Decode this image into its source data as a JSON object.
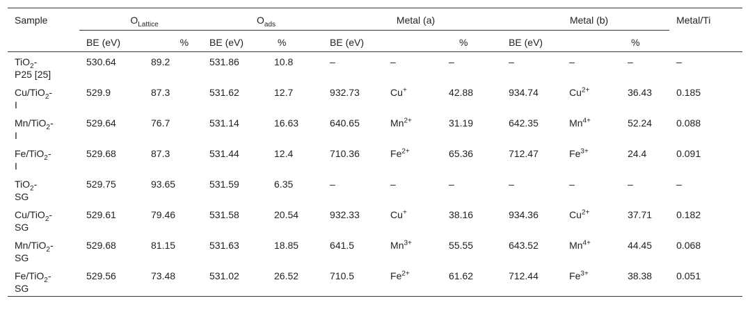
{
  "header": {
    "sample": "Sample",
    "o_lattice": {
      "main": "O",
      "sub": "Lattice"
    },
    "o_ads": {
      "main": "O",
      "sub": "ads"
    },
    "metal_a": "Metal (a)",
    "metal_b": "Metal (b)",
    "be": "BE (eV)",
    "pct": "%",
    "metal_ti": "Metal/Ti"
  },
  "rows": [
    {
      "sample_main": "TiO",
      "sample_sub": "2",
      "sample_tail": "-",
      "sample_line2": "P25 [25]",
      "olat_be": "530.64",
      "olat_pct": "89.2",
      "oads_be": "531.86",
      "oads_pct": "10.8",
      "ma_be": "–",
      "ma_ion": "–",
      "ma_ion_sup": "",
      "ma_pct": "–",
      "mb_be": "–",
      "mb_ion": "–",
      "mb_ion_sup": "",
      "mb_pct": "–",
      "ratio": "–"
    },
    {
      "sample_main": "Cu/TiO",
      "sample_sub": "2",
      "sample_tail": "-",
      "sample_line2": "I",
      "olat_be": "529.9",
      "olat_pct": "87.3",
      "oads_be": "531.62",
      "oads_pct": "12.7",
      "ma_be": "932.73",
      "ma_ion": "Cu",
      "ma_ion_sup": "+",
      "ma_pct": "42.88",
      "mb_be": "934.74",
      "mb_ion": "Cu",
      "mb_ion_sup": "2+",
      "mb_pct": "36.43",
      "ratio": "0.185"
    },
    {
      "sample_main": "Mn/TiO",
      "sample_sub": "2",
      "sample_tail": "-",
      "sample_line2": "I",
      "olat_be": "529.64",
      "olat_pct": "76.7",
      "oads_be": "531.14",
      "oads_pct": "16.63",
      "ma_be": "640.65",
      "ma_ion": "Mn",
      "ma_ion_sup": "2+",
      "ma_pct": "31.19",
      "mb_be": "642.35",
      "mb_ion": "Mn",
      "mb_ion_sup": "4+",
      "mb_pct": "52.24",
      "ratio": "0.088"
    },
    {
      "sample_main": "Fe/TiO",
      "sample_sub": "2",
      "sample_tail": "-",
      "sample_line2": "I",
      "olat_be": "529.68",
      "olat_pct": "87.3",
      "oads_be": "531.44",
      "oads_pct": "12.4",
      "ma_be": "710.36",
      "ma_ion": "Fe",
      "ma_ion_sup": "2+",
      "ma_pct": "65.36",
      "mb_be": "712.47",
      "mb_ion": "Fe",
      "mb_ion_sup": "3+",
      "mb_pct": "24.4",
      "ratio": "0.091"
    },
    {
      "sample_main": "TiO",
      "sample_sub": "2",
      "sample_tail": "-",
      "sample_line2": "SG",
      "olat_be": "529.75",
      "olat_pct": "93.65",
      "oads_be": "531.59",
      "oads_pct": "6.35",
      "ma_be": "–",
      "ma_ion": "–",
      "ma_ion_sup": "",
      "ma_pct": "–",
      "mb_be": "–",
      "mb_ion": "–",
      "mb_ion_sup": "",
      "mb_pct": "–",
      "ratio": "–"
    },
    {
      "sample_main": "Cu/TiO",
      "sample_sub": "2",
      "sample_tail": "-",
      "sample_line2": "SG",
      "olat_be": "529.61",
      "olat_pct": "79.46",
      "oads_be": "531.58",
      "oads_pct": "20.54",
      "ma_be": "932.33",
      "ma_ion": "Cu",
      "ma_ion_sup": "+",
      "ma_pct": "38.16",
      "mb_be": "934.36",
      "mb_ion": "Cu",
      "mb_ion_sup": "2+",
      "mb_pct": "37.71",
      "ratio": "0.182"
    },
    {
      "sample_main": "Mn/TiO",
      "sample_sub": "2",
      "sample_tail": "-",
      "sample_line2": "SG",
      "olat_be": "529.68",
      "olat_pct": "81.15",
      "oads_be": "531.63",
      "oads_pct": "18.85",
      "ma_be": "641.5",
      "ma_ion": "Mn",
      "ma_ion_sup": "3+",
      "ma_pct": "55.55",
      "mb_be": "643.52",
      "mb_ion": "Mn",
      "mb_ion_sup": "4+",
      "mb_pct": "44.45",
      "ratio": "0.068"
    },
    {
      "sample_main": "Fe/TiO",
      "sample_sub": "2",
      "sample_tail": "-",
      "sample_line2": "SG",
      "olat_be": "529.56",
      "olat_pct": "73.48",
      "oads_be": "531.02",
      "oads_pct": "26.52",
      "ma_be": "710.5",
      "ma_ion": "Fe",
      "ma_ion_sup": "2+",
      "ma_pct": "61.62",
      "mb_be": "712.44",
      "mb_ion": "Fe",
      "mb_ion_sup": "3+",
      "mb_pct": "38.38",
      "ratio": "0.051"
    }
  ]
}
